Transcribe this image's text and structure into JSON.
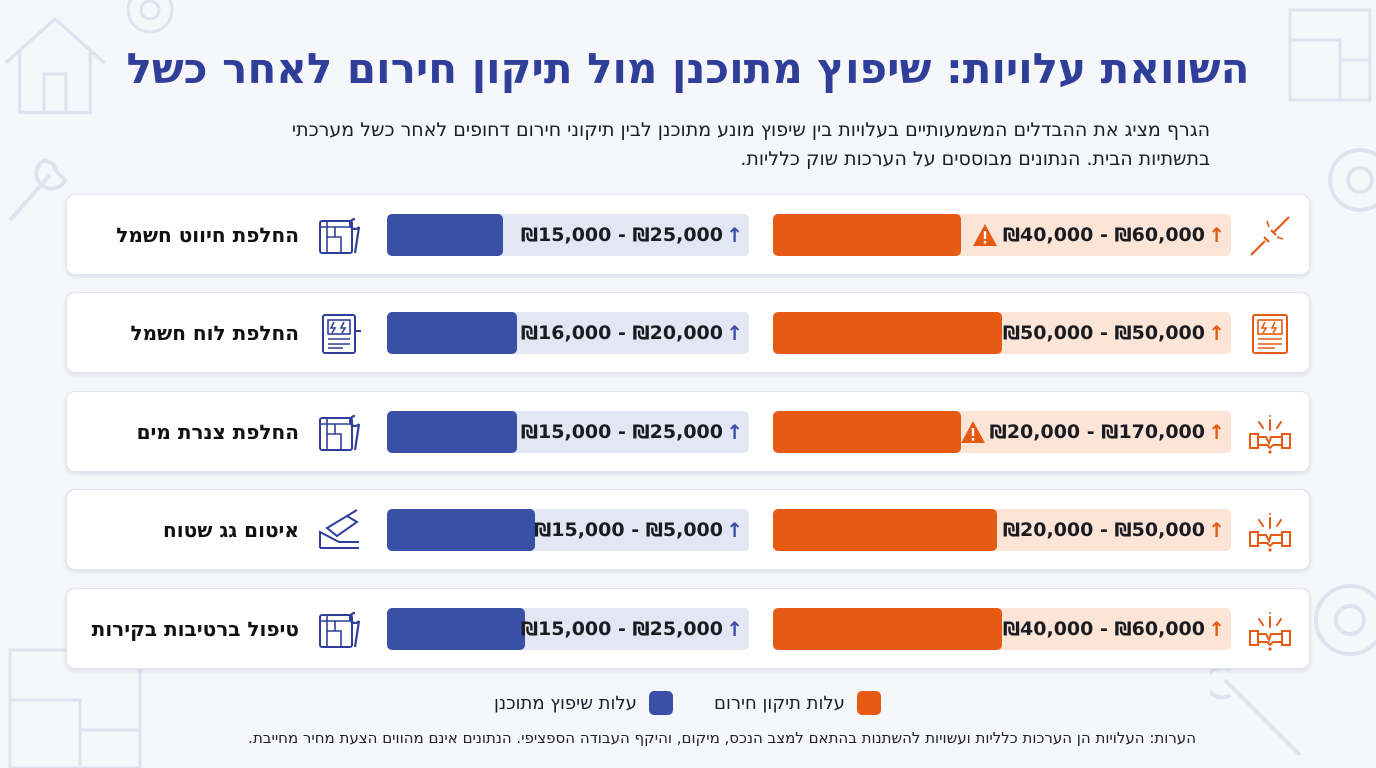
{
  "chart_data": {
    "type": "bar",
    "title": "השוואת עלויות: שיפוץ מתוכנן מול תיקון חירום לאחר כשל",
    "subtitle_line1": "הגרף מציג את ההבדלים המשמעותיים בעלויות בין שיפוץ מונע מתוכנן לבין תיקוני חירום דחופים לאחר כשל מערכתי",
    "subtitle_line2": "בתשתיות הבית. הנתונים מבוססים על הערכות שוק כלליות.",
    "categories": [
      "החלפת חיווט חשמל",
      "החלפת לוח חשמל",
      "החלפת צנרת מים",
      "איטום גג שטוח",
      "טיפול ברטיבות בקירות"
    ],
    "series": [
      {
        "name": "עלות שיפוץ מתוכנן",
        "color": "#3a4fa6",
        "ranges": [
          "₪15,000 - ₪25,000",
          "₪16,000 - ₪20,000",
          "₪15,000 - ₪25,000",
          "₪15,000 - ₪5,000",
          "₪15,000 - ₪25,000"
        ],
        "fill": [
          0.32,
          0.36,
          0.36,
          0.41,
          0.38
        ]
      },
      {
        "name": "עלות תיקון חירום",
        "color": "#e65a14",
        "ranges": [
          "₪40,000 - ₪60,000",
          "₪50,000 - ₪50,000",
          "₪20,000 - ₪170,000",
          "₪20,000 - ₪50,000",
          "₪40,000 - ₪60,000"
        ],
        "fill": [
          0.41,
          0.5,
          0.41,
          0.49,
          0.5
        ],
        "warning": [
          true,
          false,
          true,
          false,
          false
        ]
      }
    ],
    "legend_position": "bottom-center",
    "note": "הערות: העלויות הן הערכות כלליות ועשויות להשתנות בהתאם למצב הנכס, מיקום, והיקף העבודה הספציפי. הנתונים אינם מהווים הצעת מחיר מחייבת."
  },
  "icons": {
    "planned": [
      "blueprint-wrench-icon",
      "electrical-panel-icon",
      "blueprint-wrench-icon",
      "roof-trowel-icon",
      "blueprint-wrench-icon"
    ],
    "emergency": [
      "broken-wire-icon",
      "electrical-panel-icon",
      "burst-pipe-icon",
      "burst-pipe-icon",
      "burst-pipe-icon"
    ]
  }
}
